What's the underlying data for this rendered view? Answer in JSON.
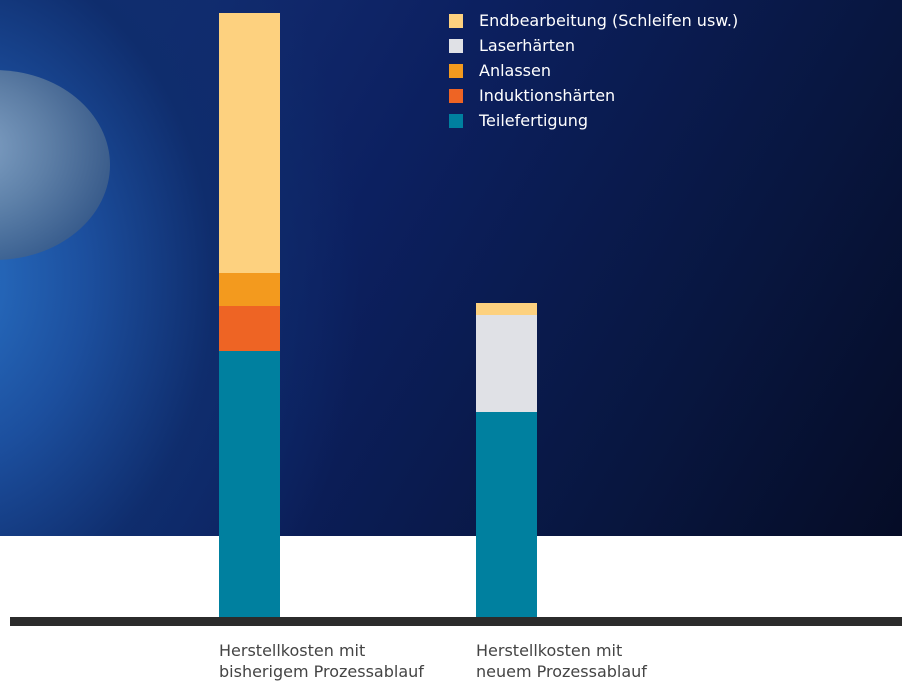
{
  "chart_data": {
    "type": "stacked_bar",
    "categories": [
      "Herstellkosten mit\nbisherigem Prozessablauf",
      "Herstellkosten mit\nneuem Prozessablauf"
    ],
    "series": [
      {
        "name": "Endbearbeitung (Schleifen usw.)",
        "color": "#fdd17f",
        "values": [
          43,
          2
        ]
      },
      {
        "name": "Laserhärten",
        "color": "#e0e1e6",
        "values": [
          0,
          16
        ]
      },
      {
        "name": "Anlassen",
        "color": "#f39a1e",
        "values": [
          5.5,
          0
        ]
      },
      {
        "name": "Induktionshärten",
        "color": "#ee6424",
        "values": [
          7.5,
          0
        ]
      },
      {
        "name": "Teilefertigung",
        "color": "#00809f",
        "values": [
          44,
          34
        ]
      }
    ],
    "ylim": [
      0,
      100
    ]
  }
}
